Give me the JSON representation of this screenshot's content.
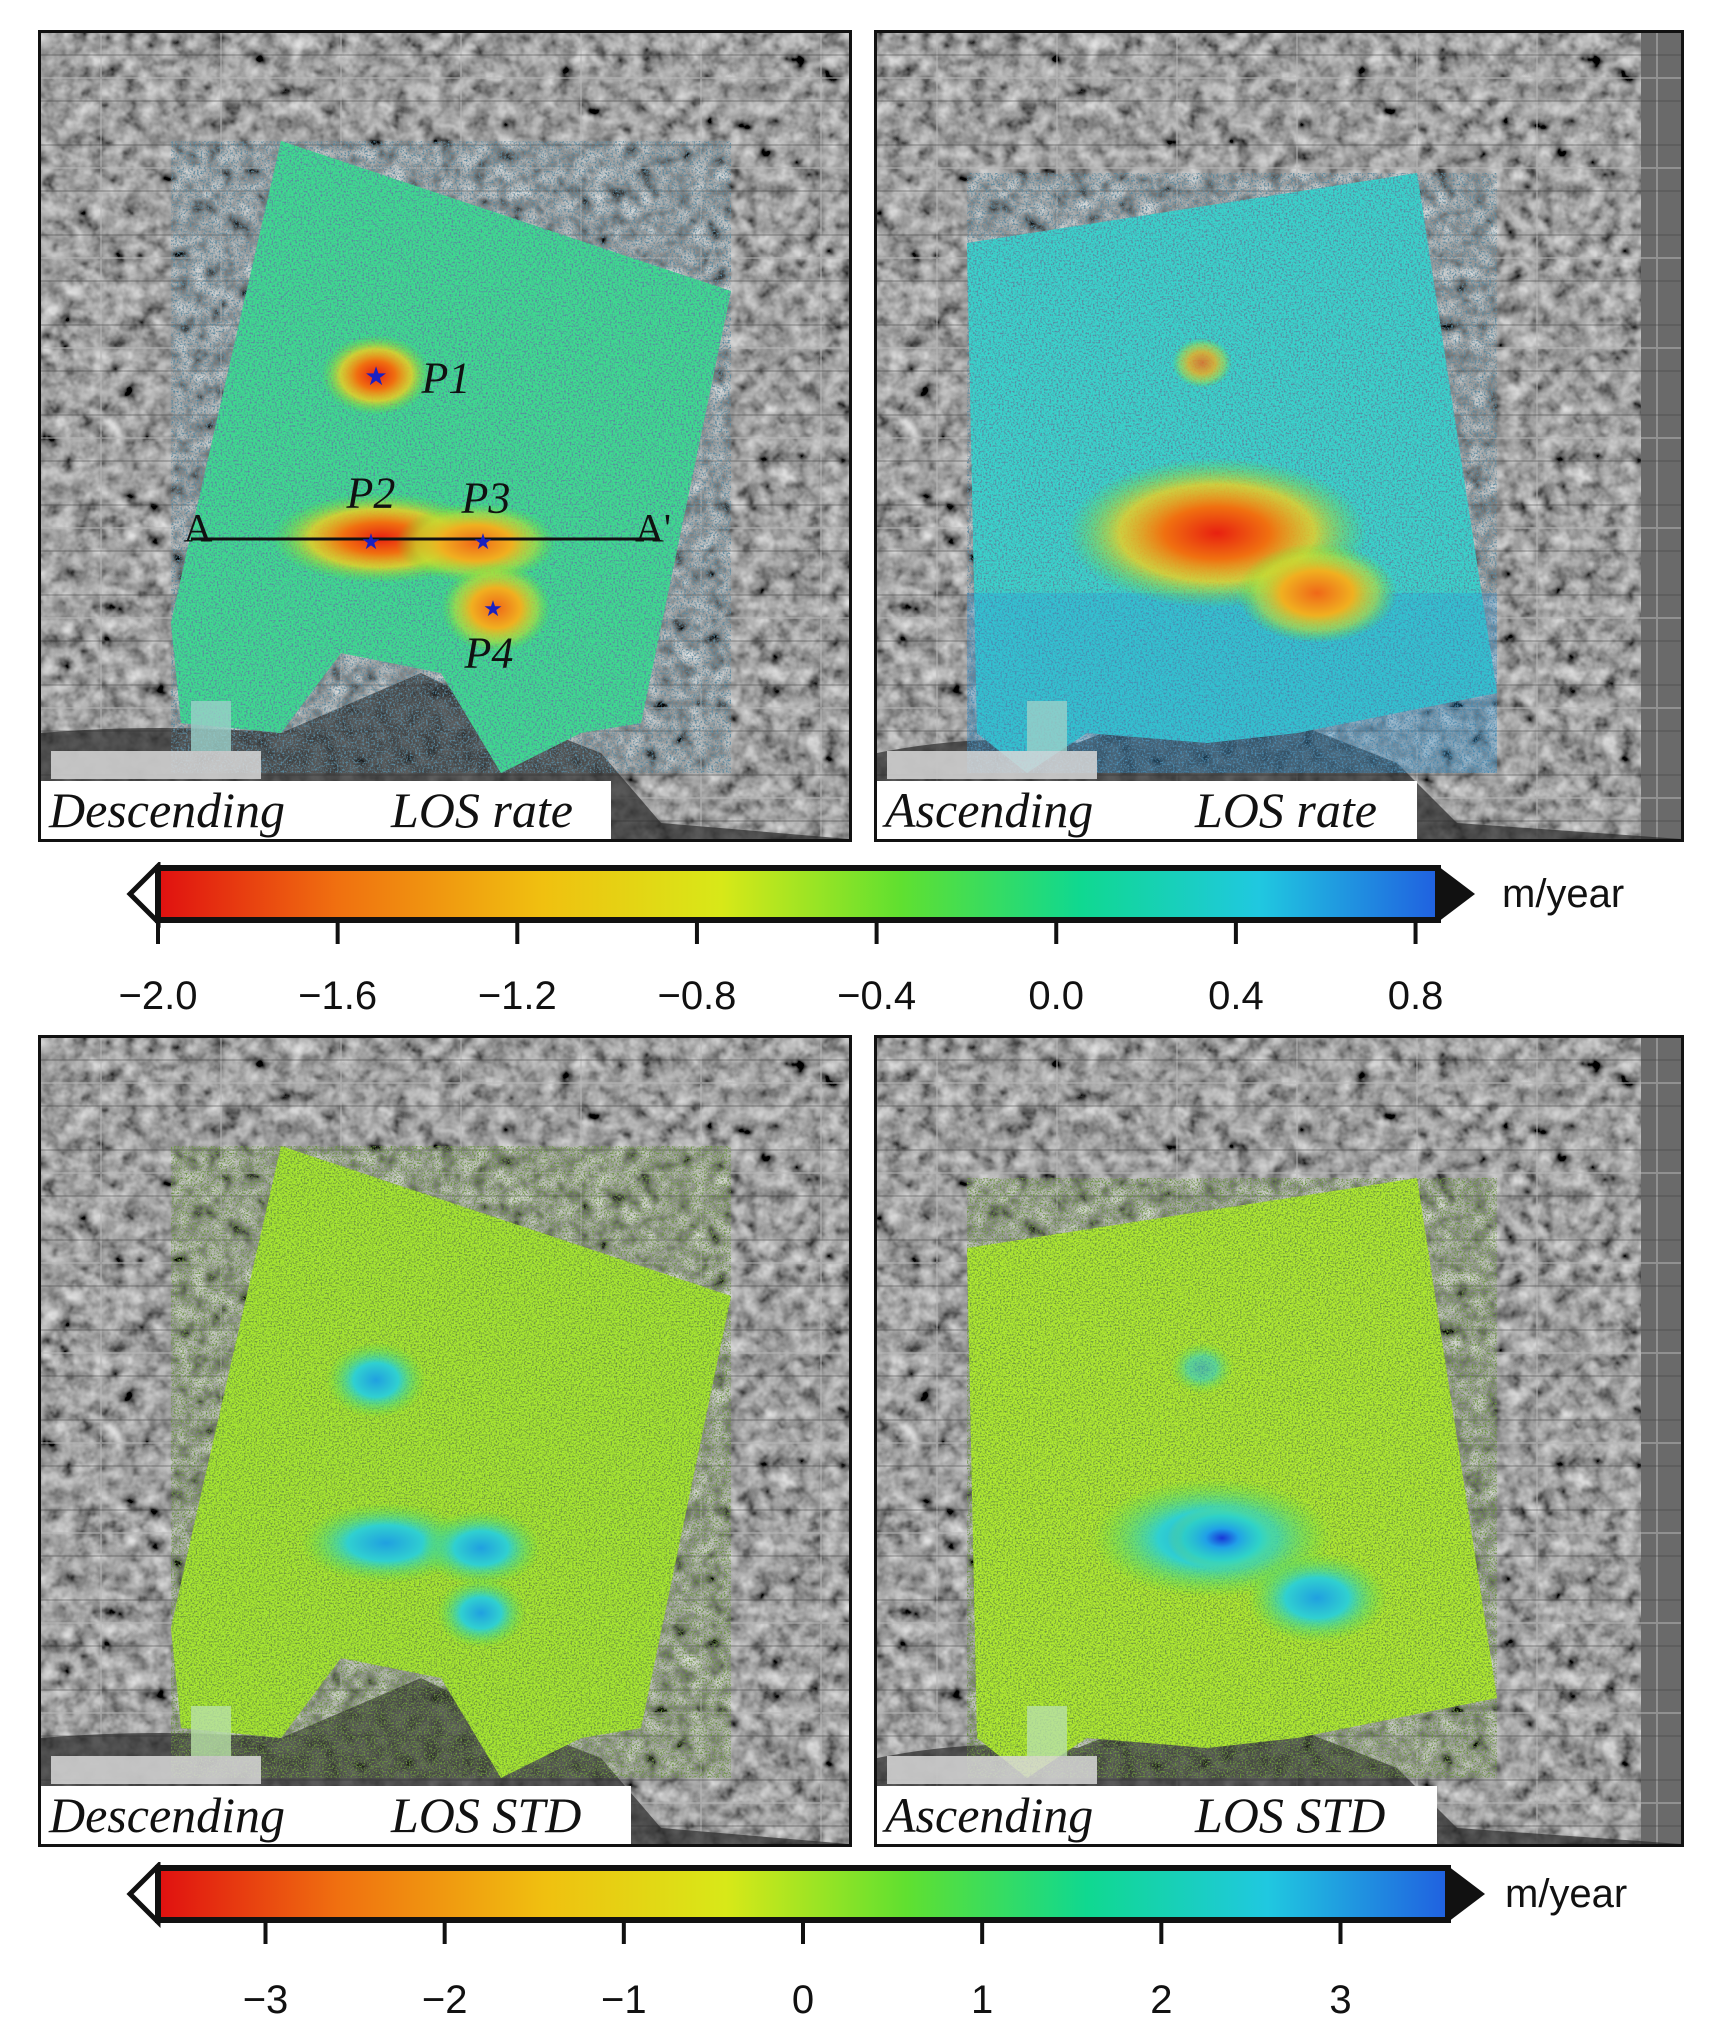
{
  "panels": [
    {
      "id": "desc-rate",
      "orbit": "Descending",
      "quantity": "LOS rate"
    },
    {
      "id": "asc-rate",
      "orbit": "Ascending",
      "quantity": "LOS rate"
    },
    {
      "id": "desc-std",
      "orbit": "Descending",
      "quantity": "LOS STD"
    },
    {
      "id": "asc-std",
      "orbit": "Ascending",
      "quantity": "LOS STD"
    }
  ],
  "points": [
    "P1",
    "P2",
    "P3",
    "P4"
  ],
  "profile": {
    "start_label": "A",
    "end_label": "A'"
  },
  "colorbars": [
    {
      "unit": "m/year",
      "range": [
        -2.0,
        0.85
      ],
      "ticks": [
        "−2.0",
        "−1.6",
        "−1.2",
        "−0.8",
        "−0.4",
        "0.0",
        "0.4",
        "0.8"
      ],
      "tick_values": [
        -2.0,
        -1.6,
        -1.2,
        -0.8,
        -0.4,
        0.0,
        0.4,
        0.8
      ]
    },
    {
      "unit": "m/year",
      "range": [
        -3.6,
        3.6
      ],
      "ticks": [
        "−3",
        "−2",
        "−1",
        "0",
        "1",
        "2",
        "3"
      ],
      "tick_values": [
        -3,
        -2,
        -1,
        0,
        1,
        2,
        3
      ]
    }
  ],
  "colormap": [
    "#e01010",
    "#f07010",
    "#f0c010",
    "#d8e818",
    "#60e030",
    "#10d890",
    "#20c8e0",
    "#2060e0"
  ]
}
